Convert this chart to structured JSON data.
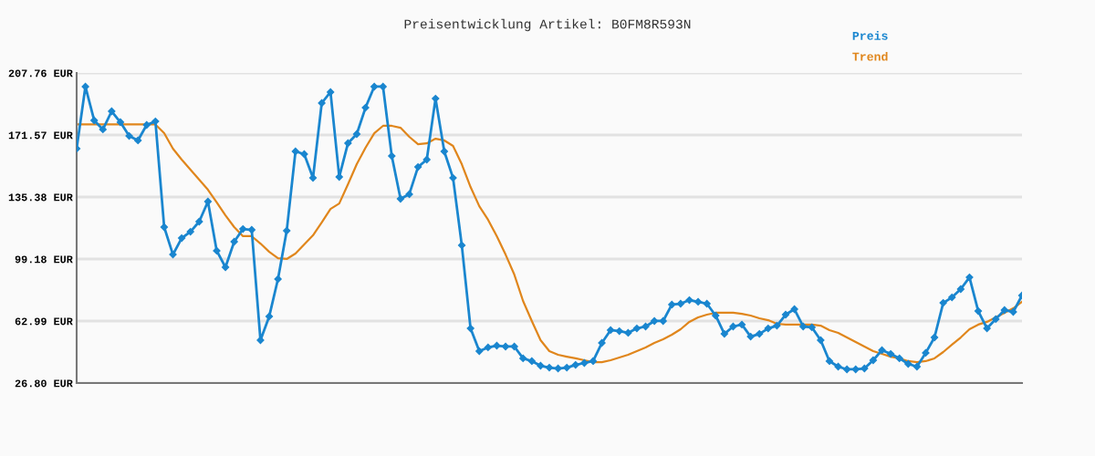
{
  "chart_data": {
    "type": "line",
    "title": "Preisentwicklung Artikel: B0FM8R593N",
    "categories": [
      null,
      null,
      null,
      null,
      null,
      null,
      null,
      null,
      null,
      null,
      null,
      null,
      null,
      null,
      null,
      null,
      null,
      null,
      null,
      null,
      null,
      null,
      null,
      null,
      null,
      null,
      null,
      null,
      null,
      null,
      null,
      null,
      null,
      null,
      null,
      null,
      null,
      null,
      null,
      null,
      null,
      null,
      null,
      null,
      null,
      null,
      null,
      null,
      null,
      null,
      null,
      null,
      null,
      null,
      null,
      null,
      null,
      null,
      null,
      null,
      null,
      null,
      null,
      null,
      null,
      null,
      null,
      null,
      null,
      null,
      null,
      null,
      null,
      null,
      null,
      null,
      null,
      null,
      null,
      null,
      null,
      null,
      null,
      null,
      null,
      null,
      null,
      null,
      null,
      null,
      null,
      null,
      null,
      null,
      null,
      null,
      null,
      null,
      null,
      null,
      null,
      null,
      null,
      null,
      null,
      null,
      null,
      null,
      null
    ],
    "series": [
      {
        "name": "Preis",
        "color": "#1a86cf",
        "marker": "diamond",
        "values": [
          163.6,
          199.8,
          180.1,
          174.8,
          185.4,
          179.0,
          171.0,
          168.4,
          177.4,
          179.5,
          117.8,
          101.8,
          111.4,
          115.1,
          121.0,
          132.7,
          104.0,
          94.4,
          109.3,
          116.7,
          116.2,
          51.8,
          65.7,
          87.5,
          115.7,
          162.0,
          160.4,
          146.5,
          190.2,
          196.6,
          147.1,
          166.8,
          172.1,
          187.5,
          199.8,
          199.8,
          159.3,
          134.3,
          137.0,
          152.9,
          157.2,
          192.8,
          162.0,
          146.5,
          107.2,
          58.7,
          45.4,
          47.6,
          48.6,
          48.1,
          48.1,
          41.2,
          39.6,
          36.9,
          35.8,
          35.3,
          35.8,
          37.4,
          38.5,
          39.6,
          50.2,
          57.7,
          57.1,
          56.1,
          58.7,
          59.8,
          63.0,
          63.0,
          72.6,
          73.1,
          75.2,
          74.2,
          73.1,
          66.2,
          55.5,
          59.8,
          60.9,
          53.9,
          55.5,
          58.7,
          60.3,
          66.7,
          69.9,
          59.8,
          59.3,
          51.8,
          39.6,
          36.4,
          34.8,
          34.8,
          35.3,
          40.1,
          46.0,
          43.8,
          41.2,
          38.0,
          36.4,
          44.4,
          53.4,
          73.6,
          76.8,
          81.6,
          88.5,
          68.8,
          58.7,
          64.1,
          69.4,
          68.3,
          77.9
        ]
      },
      {
        "name": "Trend",
        "color": "#e0861c",
        "marker": "none",
        "values": [
          177.7,
          177.7,
          177.7,
          177.7,
          177.7,
          177.7,
          177.7,
          177.7,
          177.7,
          177.7,
          172.6,
          163.6,
          157.2,
          151.3,
          145.5,
          139.6,
          132.2,
          124.7,
          117.8,
          112.5,
          112.5,
          108.2,
          103.4,
          99.7,
          99.2,
          102.4,
          107.7,
          113.0,
          120.5,
          128.4,
          131.6,
          142.8,
          154.5,
          164.1,
          172.6,
          176.9,
          176.9,
          175.8,
          170.5,
          166.2,
          166.7,
          169.4,
          168.4,
          165.2,
          154.5,
          141.2,
          130.0,
          122.1,
          112.5,
          101.8,
          90.1,
          74.7,
          63.0,
          51.8,
          45.4,
          43.3,
          42.2,
          41.2,
          40.1,
          39.0,
          39.0,
          40.1,
          41.7,
          43.3,
          45.4,
          47.6,
          50.2,
          52.3,
          55.0,
          58.2,
          62.5,
          65.1,
          66.7,
          67.8,
          67.8,
          67.8,
          67.2,
          66.2,
          64.6,
          63.5,
          61.4,
          60.9,
          60.9,
          60.9,
          60.9,
          60.3,
          57.7,
          56.1,
          53.4,
          50.7,
          48.1,
          45.4,
          43.8,
          42.2,
          41.2,
          39.6,
          39.0,
          39.6,
          41.2,
          44.9,
          49.2,
          53.4,
          58.2,
          60.9,
          62.5,
          65.1,
          67.8,
          70.4,
          74.2
        ]
      }
    ],
    "ylim": [
      26.8,
      207.76
    ],
    "yticks": [
      {
        "value": 26.8,
        "label": "26.80 EUR"
      },
      {
        "value": 62.99,
        "label": "62.99 EUR"
      },
      {
        "value": 99.18,
        "label": "99.18 EUR"
      },
      {
        "value": 135.38,
        "label": "135.38 EUR"
      },
      {
        "value": 171.57,
        "label": "171.57 EUR"
      },
      {
        "value": 207.76,
        "label": "207.76 EUR"
      }
    ],
    "grid": "y",
    "legend": "top right",
    "line_style": "solid"
  }
}
